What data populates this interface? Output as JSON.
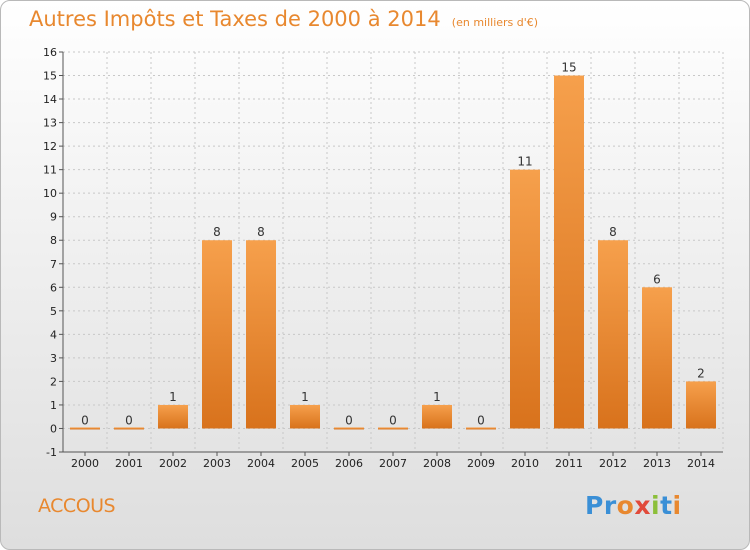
{
  "title": "Autres Impôts et Taxes de 2000 à 2014",
  "subtitle": "(en milliers d'€)",
  "commune": "ACCOUS",
  "logo": {
    "letters": [
      "P",
      "r",
      "o",
      "x",
      "i",
      "t",
      "i"
    ],
    "colors": [
      "#3a8fd6",
      "#3a8fd6",
      "#e8882f",
      "#e14a3a",
      "#8cbf3a",
      "#3a8fd6",
      "#e8882f"
    ]
  },
  "colors": {
    "bar_light": "#f6a04c",
    "bar_dark": "#d8721c",
    "text_accent": "#e8882f"
  },
  "chart_data": {
    "type": "bar",
    "categories": [
      "2000",
      "2001",
      "2002",
      "2003",
      "2004",
      "2005",
      "2006",
      "2007",
      "2008",
      "2009",
      "2010",
      "2011",
      "2012",
      "2013",
      "2014"
    ],
    "values": [
      0,
      0,
      1,
      8,
      8,
      1,
      0,
      0,
      1,
      0,
      11,
      15,
      8,
      6,
      2
    ],
    "value_labels": [
      "0",
      "0",
      "1",
      "8",
      "8",
      "1",
      "0",
      "0",
      "1",
      "0",
      "11",
      "15",
      "8",
      "6",
      "2"
    ],
    "ylim": [
      -1,
      16
    ],
    "yticks": [
      -1,
      0,
      1,
      2,
      3,
      4,
      5,
      6,
      7,
      8,
      9,
      10,
      11,
      12,
      13,
      14,
      15,
      16
    ],
    "grid": true
  }
}
